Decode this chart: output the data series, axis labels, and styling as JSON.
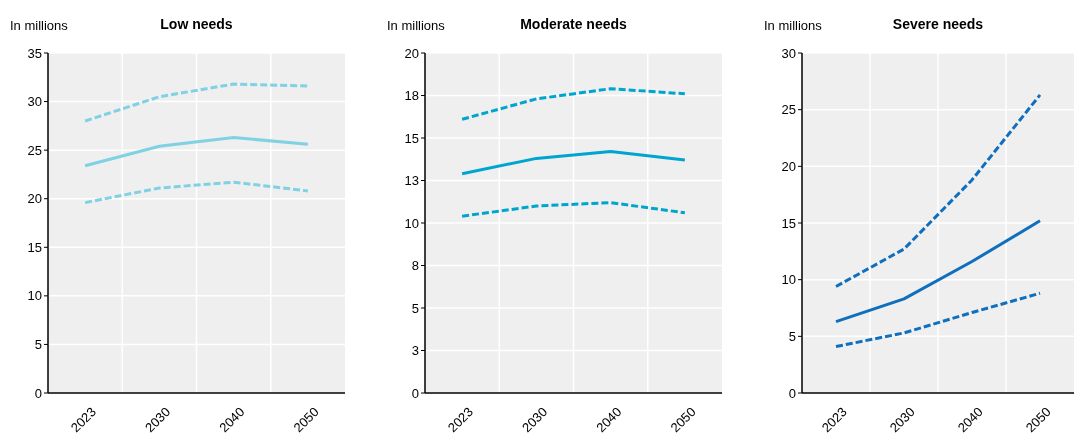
{
  "chart_data": [
    {
      "type": "line",
      "title": "Low needs",
      "ylabel": "In millions",
      "categories": [
        "2023",
        "2030",
        "2040",
        "2050"
      ],
      "ylim": [
        0,
        35
      ],
      "yticks": [
        0,
        5,
        10,
        15,
        20,
        25,
        30,
        35
      ],
      "grid": true,
      "marker": "none",
      "series": [
        {
          "color": "#7fd1e3",
          "line_style": "dashed",
          "values": [
            28.0,
            30.5,
            31.8,
            31.6
          ]
        },
        {
          "color": "#7fd1e3",
          "line_style": "solid",
          "values": [
            23.4,
            25.4,
            26.3,
            25.6
          ]
        },
        {
          "color": "#7fd1e3",
          "line_style": "dashed",
          "values": [
            19.6,
            21.1,
            21.7,
            20.8
          ]
        }
      ]
    },
    {
      "type": "line",
      "title": "Moderate needs",
      "ylabel": "In millions",
      "categories": [
        "2023",
        "2030",
        "2040",
        "2050"
      ],
      "ylim": [
        0,
        20
      ],
      "yticks": [
        0,
        {
          "value": 2.5,
          "label": "3"
        },
        5,
        {
          "value": 7.5,
          "label": "8"
        },
        10,
        {
          "value": 12.5,
          "label": "13"
        },
        15,
        {
          "value": 17.5,
          "label": "18"
        },
        20
      ],
      "grid": true,
      "marker": "none",
      "series": [
        {
          "color": "#00a5cf",
          "line_style": "dashed",
          "values": [
            16.1,
            17.3,
            17.9,
            17.6
          ]
        },
        {
          "color": "#00a5cf",
          "line_style": "solid",
          "values": [
            12.9,
            13.8,
            14.2,
            13.7
          ]
        },
        {
          "color": "#00a5cf",
          "line_style": "dashed",
          "values": [
            10.4,
            11.0,
            11.2,
            10.6
          ]
        }
      ]
    },
    {
      "type": "line",
      "title": "Severe needs",
      "ylabel": "In millions",
      "categories": [
        "2023",
        "2030",
        "2040",
        "2050"
      ],
      "ylim": [
        0,
        30
      ],
      "yticks": [
        0,
        5,
        10,
        15,
        20,
        25,
        30
      ],
      "grid": true,
      "marker": "none",
      "series": [
        {
          "color": "#0f6fbf",
          "line_style": "dashed",
          "values": [
            9.4,
            12.7,
            18.8,
            26.3
          ]
        },
        {
          "color": "#0f6fbf",
          "line_style": "solid",
          "values": [
            6.3,
            8.3,
            11.6,
            15.2
          ]
        },
        {
          "color": "#0f6fbf",
          "line_style": "dashed",
          "values": [
            4.1,
            5.3,
            7.1,
            8.8
          ]
        }
      ]
    }
  ]
}
